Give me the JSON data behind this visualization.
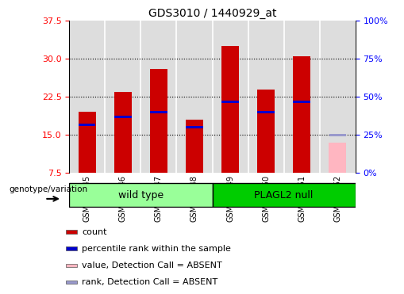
{
  "title": "GDS3010 / 1440929_at",
  "samples": [
    "GSM230945",
    "GSM230946",
    "GSM230947",
    "GSM230948",
    "GSM230949",
    "GSM230950",
    "GSM230951",
    "GSM230952"
  ],
  "bar_values": [
    19.5,
    23.5,
    28.0,
    18.0,
    32.5,
    24.0,
    30.5,
    13.5
  ],
  "blue_marker_values": [
    17.0,
    18.5,
    19.5,
    16.5,
    21.5,
    19.5,
    21.5,
    null
  ],
  "absent_bar": [
    null,
    null,
    null,
    null,
    null,
    null,
    null,
    13.5
  ],
  "absent_rank": [
    null,
    null,
    null,
    null,
    null,
    null,
    null,
    15.0
  ],
  "ylim_left": [
    7.5,
    37.5
  ],
  "yticks_left": [
    7.5,
    15.0,
    22.5,
    30.0,
    37.5
  ],
  "yticks_right": [
    0,
    25,
    50,
    75,
    100
  ],
  "ylim_right": [
    0,
    100
  ],
  "bar_width": 0.5,
  "bar_color_red": "#CC0000",
  "bar_color_pink": "#FFB6C1",
  "blue_color": "#0000CC",
  "blue_light_color": "#9999CC",
  "wt_color": "#99FF99",
  "plagl2_color": "#00CC00",
  "group_label": "genotype/variation",
  "legend_items": [
    {
      "color": "#CC0000",
      "label": "count"
    },
    {
      "color": "#0000CC",
      "label": "percentile rank within the sample"
    },
    {
      "color": "#FFB6C1",
      "label": "value, Detection Call = ABSENT"
    },
    {
      "color": "#9999CC",
      "label": "rank, Detection Call = ABSENT"
    }
  ],
  "bg_color": "#DDDDDD",
  "plot_bg_color": "#EEEEEE"
}
